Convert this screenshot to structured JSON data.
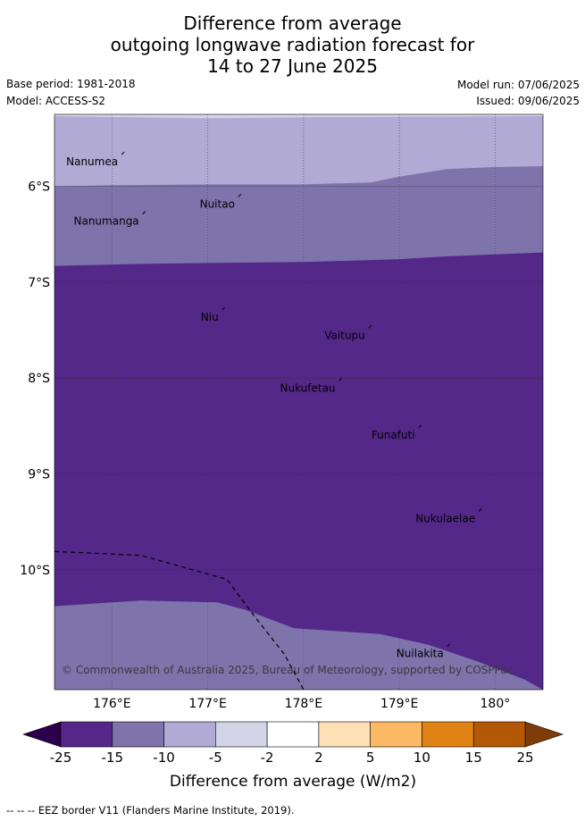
{
  "title_lines": [
    "Difference from average",
    "outgoing longwave radiation forecast for",
    "14 to 27 June 2025"
  ],
  "base_period": "Base period: 1981-2018",
  "model": "Model: ACCESS-S2",
  "model_run": "Model run: 07/06/2025",
  "issued": "Issued: 09/06/2025",
  "copyright": "© Commonwealth of Australia 2025, Bureau of Meteorology, supported by COSPPac",
  "footnote": "--  --  -- EEZ border V11 (Flanders Marine Institute, 2019).",
  "map": {
    "lon_range": [
      175.4,
      180.5
    ],
    "lat_range": [
      -5.25,
      -11.25
    ],
    "lon_ticks": [
      {
        "value": 176,
        "label": "176°E"
      },
      {
        "value": 177,
        "label": "177°E"
      },
      {
        "value": 178,
        "label": "178°E"
      },
      {
        "value": 179,
        "label": "179°E"
      },
      {
        "value": 180,
        "label": "180°"
      }
    ],
    "lat_ticks": [
      {
        "value": -6,
        "label": "6°S"
      },
      {
        "value": -7,
        "label": "7°S"
      },
      {
        "value": -8,
        "label": "8°S"
      },
      {
        "value": -9,
        "label": "9°S"
      },
      {
        "value": -10,
        "label": "10°S"
      }
    ],
    "islands": [
      {
        "name": "Nanumea",
        "lon": 176.1,
        "lat": -5.67
      },
      {
        "name": "Nuitao",
        "lon": 177.32,
        "lat": -6.11
      },
      {
        "name": "Nanumanga",
        "lon": 176.32,
        "lat": -6.29
      },
      {
        "name": "Niu",
        "lon": 177.15,
        "lat": -7.29
      },
      {
        "name": "Vaitupu",
        "lon": 178.68,
        "lat": -7.48
      },
      {
        "name": "Nukufetau",
        "lon": 178.37,
        "lat": -8.03
      },
      {
        "name": "Funafuti",
        "lon": 179.2,
        "lat": -8.52
      },
      {
        "name": "Nukulaelae",
        "lon": 179.83,
        "lat": -9.39
      },
      {
        "name": "Nuilakita",
        "lon": 179.5,
        "lat": -10.8
      }
    ],
    "contour_bands": [
      {
        "level": "-5 to -2",
        "color": "#d4d4e8",
        "top_edge": [
          [
            175.4,
            -5.25
          ],
          [
            180.5,
            -5.25
          ]
        ],
        "bottom_edge": [
          [
            175.4,
            -5.27
          ],
          [
            177.0,
            -5.29
          ],
          [
            178.0,
            -5.28
          ],
          [
            180.5,
            -5.27
          ]
        ]
      },
      {
        "level": "-10 to -5",
        "color": "#b0aad4",
        "bottom_edge": [
          [
            175.4,
            -6.0
          ],
          [
            176.0,
            -5.99
          ],
          [
            177.0,
            -5.98
          ],
          [
            178.0,
            -5.98
          ],
          [
            178.7,
            -5.96
          ],
          [
            179.0,
            -5.9
          ],
          [
            179.5,
            -5.82
          ],
          [
            180.0,
            -5.8
          ],
          [
            180.5,
            -5.79
          ]
        ]
      },
      {
        "level": "-15 to -10",
        "color": "#7f73ac",
        "bottom_edge": [
          [
            175.4,
            -6.83
          ],
          [
            176.3,
            -6.81
          ],
          [
            177.0,
            -6.8
          ],
          [
            178.0,
            -6.79
          ],
          [
            179.0,
            -6.76
          ],
          [
            179.5,
            -6.73
          ],
          [
            180.0,
            -6.71
          ],
          [
            180.5,
            -6.69
          ]
        ]
      },
      {
        "level": "-25 to -15",
        "color": "#542889",
        "bottom_edge": [
          [
            175.4,
            -10.38
          ],
          [
            176.0,
            -10.34
          ],
          [
            176.3,
            -10.32
          ],
          [
            177.1,
            -10.34
          ],
          [
            177.4,
            -10.42
          ],
          [
            177.9,
            -10.61
          ],
          [
            178.8,
            -10.67
          ],
          [
            179.3,
            -10.78
          ],
          [
            179.8,
            -10.95
          ],
          [
            180.3,
            -11.14
          ],
          [
            180.5,
            -11.25
          ]
        ]
      },
      {
        "level": "-15 to -10",
        "color": "#7f73ac"
      }
    ],
    "eez_border": [
      [
        175.4,
        -9.81
      ],
      [
        175.9,
        -9.83
      ],
      [
        176.3,
        -9.85
      ],
      [
        176.7,
        -9.96
      ],
      [
        177.2,
        -10.1
      ],
      [
        177.5,
        -10.5
      ],
      [
        177.8,
        -10.88
      ],
      [
        178.0,
        -11.25
      ]
    ]
  },
  "legend": {
    "title": "Difference from average (W/m2)",
    "tick_labels": [
      "-25",
      "-15",
      "-10",
      "-5",
      "-2",
      "2",
      "5",
      "10",
      "15",
      "25"
    ],
    "colors": [
      "#542889",
      "#7f73ac",
      "#b0aad4",
      "#d4d4e8",
      "#ffffff",
      "#fde0b5",
      "#fdb864",
      "#e08214",
      "#b35806"
    ],
    "under_color": "#2d004b",
    "over_color": "#7f3b08"
  }
}
